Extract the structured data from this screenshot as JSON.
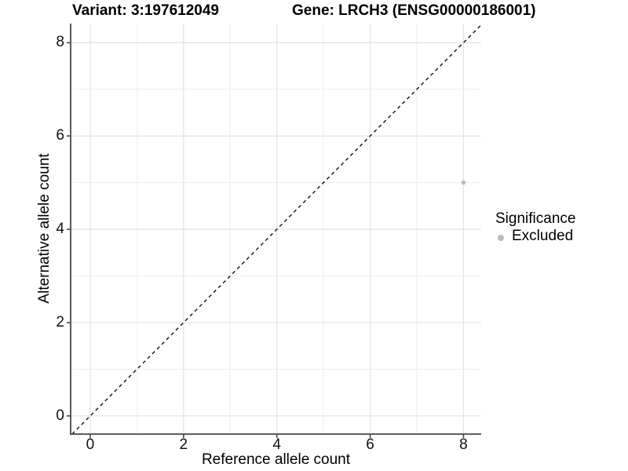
{
  "chart_data": {
    "type": "scatter",
    "title_left": "Variant: 3:197612049",
    "title_right": "Gene: LRCH3 (ENSG00000186001)",
    "xlabel": "Reference allele count",
    "ylabel": "Alternative allele count",
    "xlim": [
      -0.42,
      8.38
    ],
    "ylim": [
      -0.39,
      8.41
    ],
    "x_major_ticks": [
      0,
      2,
      4,
      6,
      8
    ],
    "x_minor_ticks": [
      1,
      3,
      5,
      7
    ],
    "y_major_ticks": [
      0,
      2,
      4,
      6,
      8
    ],
    "y_minor_ticks": [
      1,
      3,
      5,
      7
    ],
    "grid": true,
    "series": [
      {
        "name": "Excluded",
        "color": "#bcbcbc",
        "point_radius": 2.8,
        "points": [
          {
            "x": 8,
            "y": 5
          }
        ]
      }
    ],
    "identity_line": {
      "dashed": true,
      "slope": 1,
      "intercept": 0,
      "color": "#000000"
    },
    "legend": {
      "title": "Significance",
      "position": "right",
      "entries": [
        {
          "label": "Excluded",
          "color": "#bcbcbc"
        }
      ]
    },
    "colors": {
      "background": "#ffffff",
      "grid_major": "#e3e3e3",
      "grid_minor": "#eeeeee",
      "axis": "#474747",
      "tick_text": "#111111"
    }
  }
}
